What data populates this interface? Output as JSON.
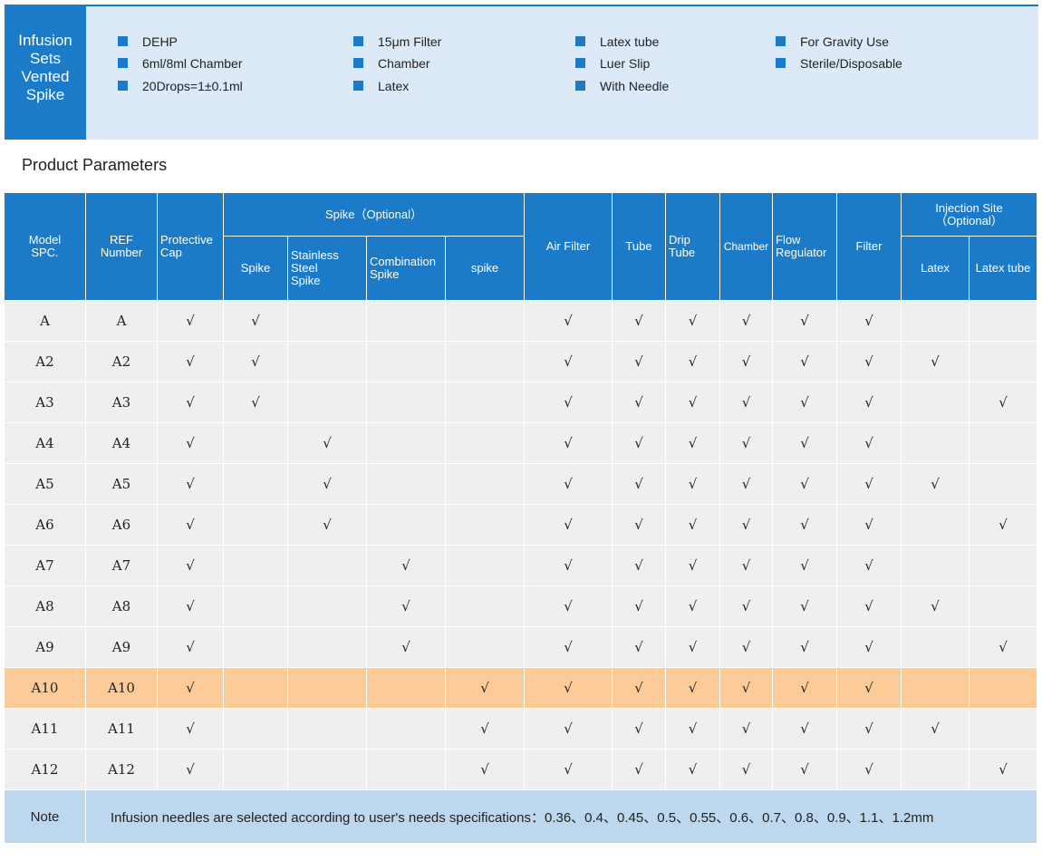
{
  "banner": {
    "title": "Infusion\nSets\nVented\nSpike",
    "features": [
      [
        "DEHP",
        "6ml/8ml Chamber",
        "20Drops=1±0.1ml"
      ],
      [
        "15μm Filter",
        "Chamber",
        "Latex"
      ],
      [
        "Latex tube",
        "Luer Slip",
        "With Needle"
      ],
      [
        "For Gravity Use",
        "Sterile/Disposable"
      ]
    ]
  },
  "section_title": "Product Parameters",
  "table": {
    "columns": [
      "Model\nSPC.",
      "REF\nNumber",
      "Protective\nCap",
      "Spike",
      "Stainless\nSteel\nSpike",
      "Combination\nSpike",
      "spike",
      "Air Filter",
      "Tube",
      "Drip\nTube",
      "Chamber",
      "Flow\nRegulator",
      "Filter",
      "Latex",
      "Latex tube"
    ],
    "groups": [
      "Spike（Optional）",
      "Injection Site\n（Optional）"
    ],
    "rows": [
      {
        "cells": [
          "A",
          "A",
          "√",
          "√",
          null,
          null,
          null,
          "√",
          "√",
          "√",
          "√",
          "√",
          "√",
          null,
          null
        ]
      },
      {
        "cells": [
          "A2",
          "A2",
          "√",
          "√",
          null,
          null,
          null,
          "√",
          "√",
          "√",
          "√",
          "√",
          "√",
          "√",
          null
        ]
      },
      {
        "cells": [
          "A3",
          "A3",
          "√",
          "√",
          null,
          null,
          null,
          "√",
          "√",
          "√",
          "√",
          "√",
          "√",
          null,
          "√"
        ]
      },
      {
        "cells": [
          "A4",
          "A4",
          "√",
          null,
          "√",
          null,
          null,
          "√",
          "√",
          "√",
          "√",
          "√",
          "√",
          null,
          null
        ]
      },
      {
        "cells": [
          "A5",
          "A5",
          "√",
          null,
          "√",
          null,
          null,
          "√",
          "√",
          "√",
          "√",
          "√",
          "√",
          "√",
          null
        ]
      },
      {
        "cells": [
          "A6",
          "A6",
          "√",
          null,
          "√",
          null,
          null,
          "√",
          "√",
          "√",
          "√",
          "√",
          "√",
          null,
          "√"
        ]
      },
      {
        "cells": [
          "A7",
          "A7",
          "√",
          null,
          null,
          "√",
          null,
          "√",
          "√",
          "√",
          "√",
          "√",
          "√",
          null,
          null
        ]
      },
      {
        "cells": [
          "A8",
          "A8",
          "√",
          null,
          null,
          "√",
          null,
          "√",
          "√",
          "√",
          "√",
          "√",
          "√",
          "√",
          null
        ]
      },
      {
        "cells": [
          "A9",
          "A9",
          "√",
          null,
          null,
          "√",
          null,
          "√",
          "√",
          "√",
          "√",
          "√",
          "√",
          null,
          "√"
        ]
      },
      {
        "cells": [
          "A10",
          "A10",
          "√",
          null,
          null,
          null,
          "√",
          "√",
          "√",
          "√",
          "√",
          "√",
          "√",
          null,
          null
        ],
        "highlight": true
      },
      {
        "cells": [
          "A11",
          "A11",
          "√",
          null,
          null,
          null,
          "√",
          "√",
          "√",
          "√",
          "√",
          "√",
          "√",
          "√",
          null
        ]
      },
      {
        "cells": [
          "A12",
          "A12",
          "√",
          null,
          null,
          null,
          "√",
          "√",
          "√",
          "√",
          "√",
          "√",
          "√",
          null,
          "√"
        ]
      }
    ],
    "note": {
      "label": "Note",
      "text": "Infusion needles are selected according to user's needs specifications：0.36、0.4、0.45、0.5、0.55、0.6、0.7、0.8、0.9、1.1、1.2mm"
    }
  }
}
